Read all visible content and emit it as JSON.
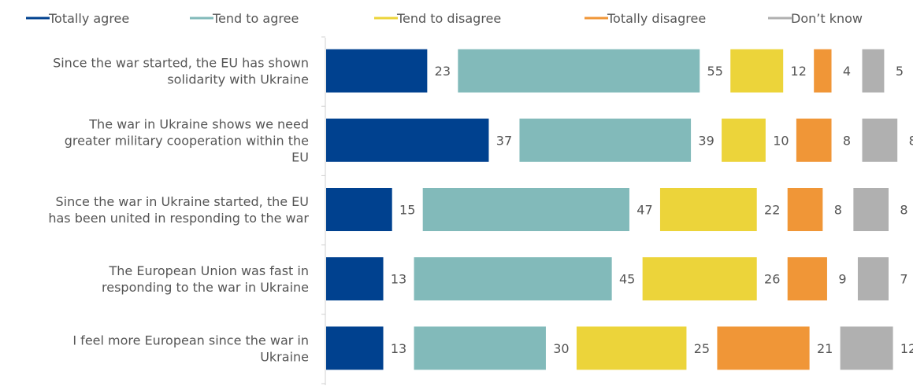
{
  "chart_data": {
    "type": "bar",
    "orientation": "horizontal",
    "stacked": true,
    "title": "",
    "xlabel": "",
    "ylabel": "",
    "legend_position": "top",
    "grid": false,
    "categories": [
      "Since the war started, the EU has shown solidarity with Ukraine",
      "The war in Ukraine shows we need greater military cooperation within the EU",
      "Since the war in Ukraine started, the EU has been united in responding to the war",
      "The European Union was fast in responding to the war in Ukraine",
      "I feel more European since the war in Ukraine"
    ],
    "category_lines": [
      [
        "Since the war started, the EU has shown",
        "solidarity with Ukraine"
      ],
      [
        "The war in Ukraine shows we need",
        "greater military cooperation within the",
        "EU"
      ],
      [
        "Since the war in Ukraine started, the EU",
        "has been united in responding to the war"
      ],
      [
        "The European Union was fast in",
        "responding to the war in Ukraine"
      ],
      [
        "I feel more European since the war in",
        "Ukraine"
      ]
    ],
    "series": [
      {
        "name": "Totally agree",
        "color": "#00418f",
        "values": [
          23,
          37,
          15,
          13,
          13
        ]
      },
      {
        "name": "Tend to agree",
        "color": "#82baba",
        "values": [
          55,
          39,
          47,
          45,
          30
        ]
      },
      {
        "name": "Tend to disagree",
        "color": "#ecd43a",
        "values": [
          12,
          10,
          22,
          26,
          25
        ]
      },
      {
        "name": "Totally disagree",
        "color": "#f09637",
        "values": [
          4,
          8,
          8,
          9,
          21
        ]
      },
      {
        "name": "Don’t know",
        "color": "#b0b0b0",
        "values": [
          5,
          8,
          8,
          7,
          12
        ]
      }
    ]
  }
}
